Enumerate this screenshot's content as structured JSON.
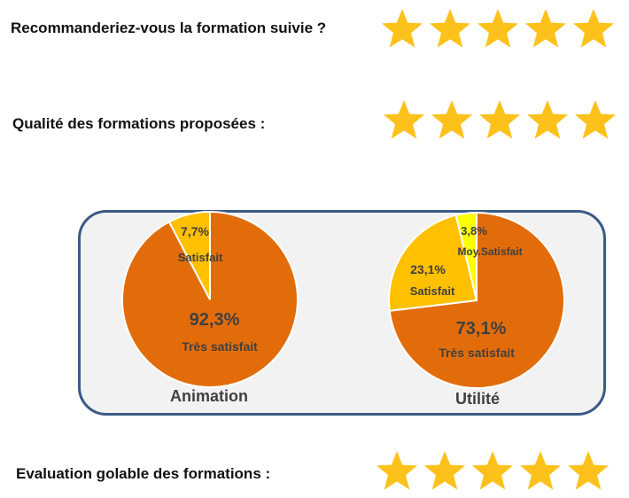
{
  "questions": [
    {
      "label": "Recommanderiez-vous la formation suivie ?",
      "stars": 5
    },
    {
      "label": "Qualité des formations proposées :",
      "stars": 5
    },
    {
      "label": "Evaluation golable des formations :",
      "stars": 5
    }
  ],
  "colors": {
    "star": "#fcc21b",
    "tres_satisfait": "#e36c0a",
    "satisfait": "#ffc000",
    "moy_satisfait": "#ffff00",
    "panel_border": "#3b5a87",
    "panel_bg": "#f2f2f2"
  },
  "chart_data": [
    {
      "type": "pie",
      "title": "Animation",
      "slices": [
        {
          "label": "Très satisfait",
          "value": 92.3,
          "value_label": "92,3%",
          "color": "#e36c0a"
        },
        {
          "label": "Satisfait",
          "value": 7.7,
          "value_label": "7,7%",
          "color": "#ffc000"
        }
      ]
    },
    {
      "type": "pie",
      "title": "Utilité",
      "slices": [
        {
          "label": "Très satisfait",
          "value": 73.1,
          "value_label": "73,1%",
          "color": "#e36c0a"
        },
        {
          "label": "Satisfait",
          "value": 23.1,
          "value_label": "23,1%",
          "color": "#ffc000"
        },
        {
          "label": "Moy.Satisfait",
          "value": 3.8,
          "value_label": "3,8%",
          "color": "#ffff00"
        }
      ]
    }
  ]
}
